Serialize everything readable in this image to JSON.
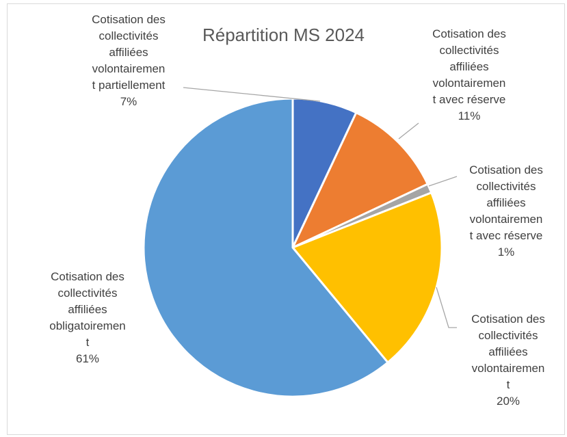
{
  "chart_data": {
    "type": "pie",
    "title": "Répartition MS 2024",
    "categories": [
      "Cotisation des\ncollectivités\naffiliées\nvolontairemen\nt partiellement",
      "Cotisation des\ncollectivités\naffiliées\nvolontairemen\nt avec réserve",
      "Cotisation des\ncollectivités\naffiliées\nvolontairemen\nt avec réserve",
      "Cotisation des\ncollectivités\naffiliées\nvolontairemen\nt",
      "Cotisation des\ncollectivités\naffiliées\nobligatoiremen\nt"
    ],
    "values": [
      7,
      11,
      1,
      20,
      61
    ],
    "value_labels": [
      "7%",
      "11%",
      "1%",
      "20%",
      "61%"
    ],
    "colors": [
      "#4472c4",
      "#ed7d31",
      "#a5a5a5",
      "#ffc000",
      "#5b9bd5"
    ]
  }
}
